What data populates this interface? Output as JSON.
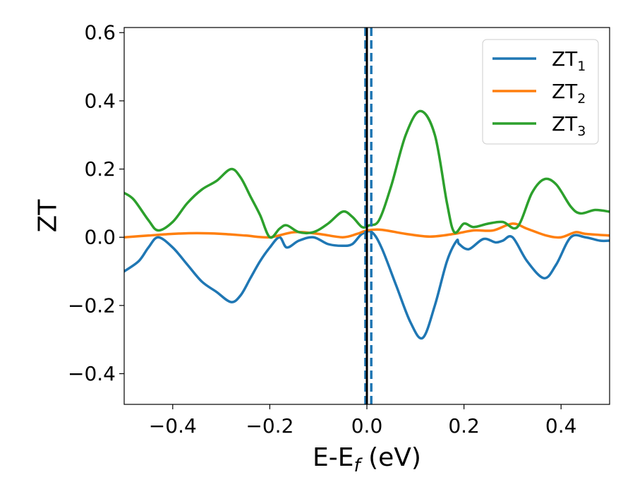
{
  "chart_data": {
    "type": "line",
    "xlabel": "E-E",
    "xlabel_sub": "f",
    "xlabel_unit": " (eV)",
    "ylabel": "ZT",
    "xlim": [
      -0.5,
      0.5
    ],
    "ylim": [
      -0.49,
      0.615
    ],
    "x_ticks": [
      -0.4,
      -0.2,
      0.0,
      0.2,
      0.4
    ],
    "x_tick_labels": [
      "−0.4",
      "−0.2",
      "0.0",
      "0.2",
      "0.4"
    ],
    "y_ticks": [
      -0.4,
      -0.2,
      0.0,
      0.2,
      0.4,
      0.6
    ],
    "y_tick_labels": [
      "−0.4",
      "−0.2",
      "0.0",
      "0.2",
      "0.4",
      "0.6"
    ],
    "grid": false,
    "legend_position": "top-right",
    "vertical_lines": [
      {
        "x": -0.003,
        "color": "#1f77b4",
        "style": "dashed"
      },
      {
        "x": 0.009,
        "color": "#1f77b4",
        "style": "dashed"
      },
      {
        "x": 0.0,
        "color": "#000000",
        "style": "solid"
      }
    ],
    "series": [
      {
        "name": "ZT",
        "name_sub": "1",
        "color": "#1f77b4",
        "points": [
          [
            -0.5,
            -0.1
          ],
          [
            -0.47,
            -0.07
          ],
          [
            -0.45,
            -0.03
          ],
          [
            -0.43,
            0.0
          ],
          [
            -0.4,
            -0.03
          ],
          [
            -0.37,
            -0.08
          ],
          [
            -0.34,
            -0.13
          ],
          [
            -0.31,
            -0.16
          ],
          [
            -0.28,
            -0.19
          ],
          [
            -0.26,
            -0.17
          ],
          [
            -0.24,
            -0.12
          ],
          [
            -0.22,
            -0.07
          ],
          [
            -0.2,
            -0.03
          ],
          [
            -0.18,
            0.0
          ],
          [
            -0.165,
            -0.03
          ],
          [
            -0.14,
            -0.01
          ],
          [
            -0.11,
            0.0
          ],
          [
            -0.08,
            -0.02
          ],
          [
            -0.05,
            -0.025
          ],
          [
            -0.03,
            -0.02
          ],
          [
            -0.01,
            0.01
          ],
          [
            0.01,
            0.015
          ],
          [
            0.03,
            -0.03
          ],
          [
            0.06,
            -0.14
          ],
          [
            0.09,
            -0.25
          ],
          [
            0.115,
            -0.295
          ],
          [
            0.14,
            -0.2
          ],
          [
            0.165,
            -0.07
          ],
          [
            0.185,
            -0.01
          ],
          [
            0.19,
            -0.02
          ],
          [
            0.21,
            -0.035
          ],
          [
            0.24,
            -0.005
          ],
          [
            0.265,
            -0.015
          ],
          [
            0.28,
            -0.01
          ],
          [
            0.3,
            0.0
          ],
          [
            0.33,
            -0.07
          ],
          [
            0.365,
            -0.12
          ],
          [
            0.39,
            -0.08
          ],
          [
            0.42,
            0.0
          ],
          [
            0.45,
            0.0
          ],
          [
            0.48,
            -0.01
          ],
          [
            0.5,
            -0.01
          ]
        ]
      },
      {
        "name": "ZT",
        "name_sub": "2",
        "color": "#ff7f0e",
        "points": [
          [
            -0.5,
            0.0
          ],
          [
            -0.45,
            0.005
          ],
          [
            -0.4,
            0.01
          ],
          [
            -0.35,
            0.012
          ],
          [
            -0.3,
            0.01
          ],
          [
            -0.25,
            0.005
          ],
          [
            -0.2,
            0.0
          ],
          [
            -0.15,
            0.015
          ],
          [
            -0.1,
            0.01
          ],
          [
            -0.05,
            0.0
          ],
          [
            -0.02,
            0.01
          ],
          [
            0.0,
            0.02
          ],
          [
            0.03,
            0.022
          ],
          [
            0.08,
            0.01
          ],
          [
            0.13,
            0.002
          ],
          [
            0.18,
            0.01
          ],
          [
            0.22,
            0.02
          ],
          [
            0.26,
            0.02
          ],
          [
            0.3,
            0.04
          ],
          [
            0.33,
            0.025
          ],
          [
            0.37,
            0.005
          ],
          [
            0.4,
            0.0
          ],
          [
            0.43,
            0.015
          ],
          [
            0.45,
            0.01
          ],
          [
            0.5,
            0.005
          ]
        ]
      },
      {
        "name": "ZT",
        "name_sub": "3",
        "color": "#2ca02c",
        "points": [
          [
            -0.5,
            0.13
          ],
          [
            -0.48,
            0.11
          ],
          [
            -0.45,
            0.05
          ],
          [
            -0.43,
            0.02
          ],
          [
            -0.4,
            0.045
          ],
          [
            -0.37,
            0.1
          ],
          [
            -0.34,
            0.14
          ],
          [
            -0.31,
            0.165
          ],
          [
            -0.28,
            0.2
          ],
          [
            -0.26,
            0.175
          ],
          [
            -0.24,
            0.12
          ],
          [
            -0.22,
            0.065
          ],
          [
            -0.2,
            0.0
          ],
          [
            -0.18,
            0.025
          ],
          [
            -0.165,
            0.035
          ],
          [
            -0.14,
            0.015
          ],
          [
            -0.11,
            0.015
          ],
          [
            -0.08,
            0.04
          ],
          [
            -0.05,
            0.075
          ],
          [
            -0.03,
            0.06
          ],
          [
            -0.01,
            0.03
          ],
          [
            0.005,
            0.035
          ],
          [
            0.025,
            0.05
          ],
          [
            0.05,
            0.15
          ],
          [
            0.08,
            0.3
          ],
          [
            0.11,
            0.37
          ],
          [
            0.14,
            0.3
          ],
          [
            0.165,
            0.1
          ],
          [
            0.18,
            0.015
          ],
          [
            0.2,
            0.04
          ],
          [
            0.22,
            0.03
          ],
          [
            0.25,
            0.04
          ],
          [
            0.28,
            0.045
          ],
          [
            0.31,
            0.03
          ],
          [
            0.34,
            0.13
          ],
          [
            0.365,
            0.17
          ],
          [
            0.39,
            0.155
          ],
          [
            0.42,
            0.09
          ],
          [
            0.44,
            0.07
          ],
          [
            0.47,
            0.08
          ],
          [
            0.5,
            0.075
          ]
        ]
      }
    ]
  }
}
